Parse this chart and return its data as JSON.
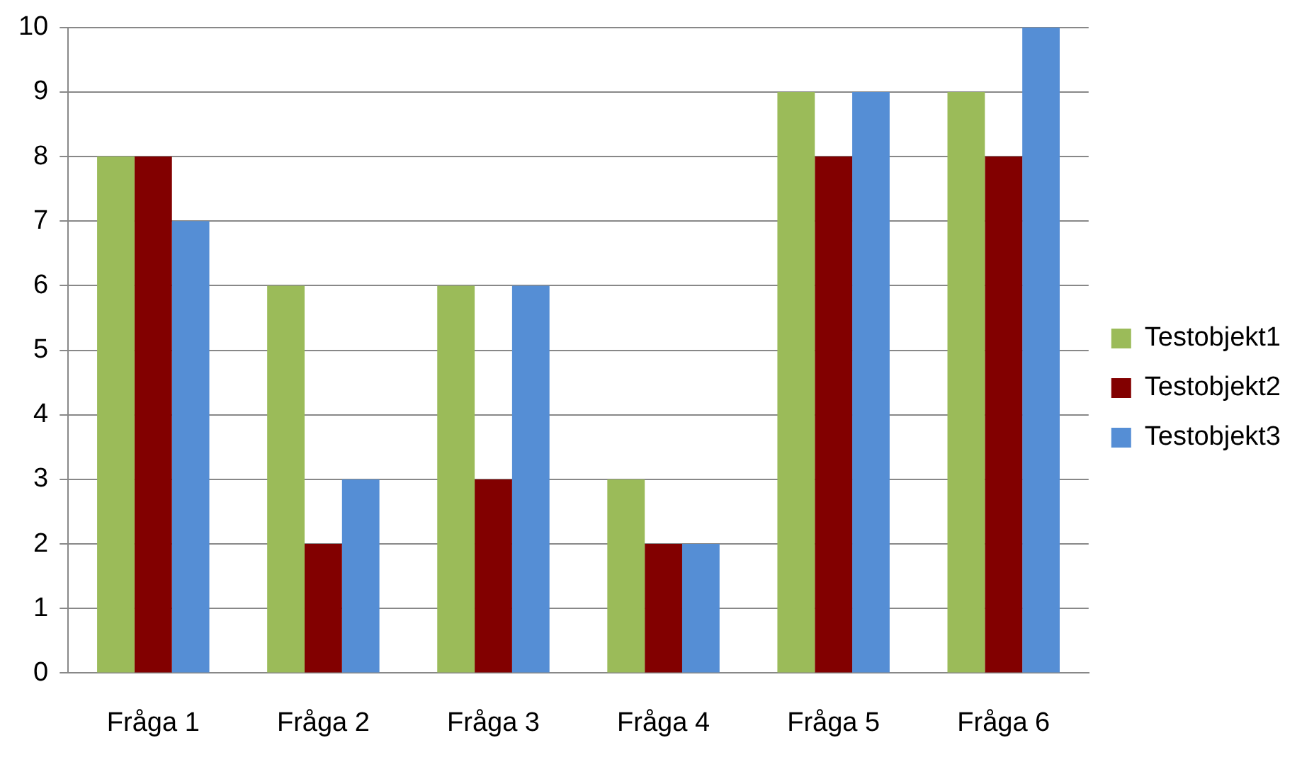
{
  "chart_data": {
    "type": "bar",
    "categories": [
      "Fråga 1",
      "Fråga 2",
      "Fråga 3",
      "Fråga 4",
      "Fråga 5",
      "Fråga 6"
    ],
    "series": [
      {
        "name": "Testobjekt1",
        "color": "#9bbb59",
        "values": [
          8,
          6,
          6,
          3,
          9,
          9
        ]
      },
      {
        "name": "Testobjekt2",
        "color": "#820000",
        "values": [
          8,
          2,
          3,
          2,
          8,
          8
        ]
      },
      {
        "name": "Testobjekt3",
        "color": "#558ed5",
        "values": [
          7,
          3,
          6,
          2,
          9,
          10
        ]
      }
    ],
    "ylim": [
      0,
      10
    ],
    "yticks": [
      0,
      1,
      2,
      3,
      4,
      5,
      6,
      7,
      8,
      9,
      10
    ],
    "grid": "y",
    "legend": "right"
  }
}
